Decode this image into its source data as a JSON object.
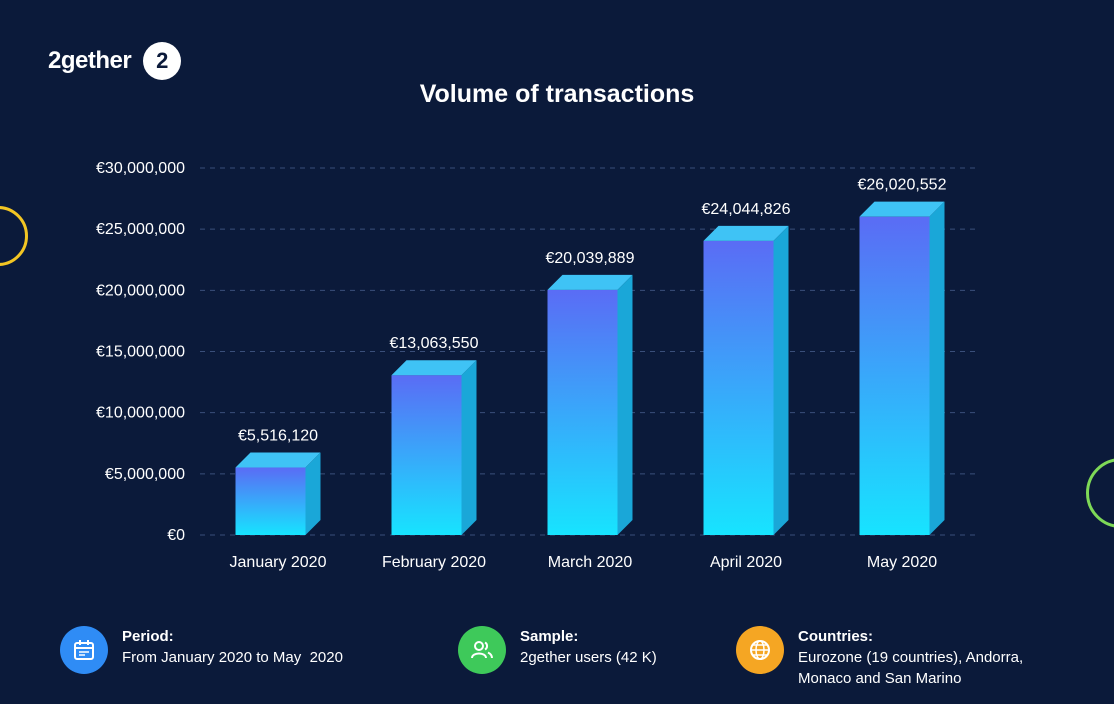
{
  "brand": {
    "name": "2gether",
    "logo_glyph": "2"
  },
  "colors": {
    "background": "#0b1a3a",
    "bar_top": "#5a6cf5",
    "bar_bottom": "#17e4ff",
    "grid": "#3a4f7a",
    "period_icon": "#2f8cf5",
    "sample_icon": "#3ec95a",
    "countries_icon": "#f5a623"
  },
  "chart_data": {
    "type": "bar",
    "title": "Volume of transactions",
    "categories": [
      "January 2020",
      "February 2020",
      "March 2020",
      "April 2020",
      "May 2020"
    ],
    "values": [
      5516120,
      13063550,
      20039889,
      24044826,
      26020552
    ],
    "data_labels": [
      "€5,516,120",
      "€13,063,550",
      "€20,039,889",
      "€24,044,826",
      "€26,020,552"
    ],
    "yticks": [
      0,
      5000000,
      10000000,
      15000000,
      20000000,
      25000000,
      30000000
    ],
    "ytick_labels": [
      "€0",
      "€5,000,000",
      "€10,000,000",
      "€15,000,000",
      "€20,000,000",
      "€25,000,000",
      "€30,000,000"
    ],
    "ylim": [
      0,
      30000000
    ],
    "grid": true,
    "legend": "none"
  },
  "footer": {
    "period": {
      "label": "Period:",
      "value": "From January 2020 to May  2020",
      "icon": "calendar-icon"
    },
    "sample": {
      "label": "Sample:",
      "value": "2gether users (42 K)",
      "icon": "users-icon"
    },
    "countries": {
      "label": "Countries:",
      "value": "Eurozone (19 countries), Andorra, Monaco and San Marino",
      "icon": "globe-icon"
    }
  }
}
